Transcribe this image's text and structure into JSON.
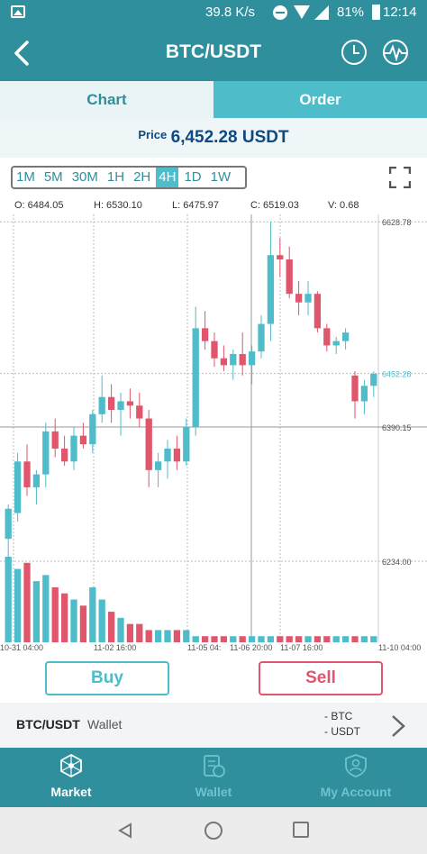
{
  "status_bar": {
    "net_speed": "39.8 K/s",
    "battery": "81%",
    "time": "12:14"
  },
  "header": {
    "title": "BTC/USDT",
    "icons": [
      "back-arrow-icon",
      "clock-icon",
      "pulse-icon"
    ]
  },
  "tabs": [
    {
      "label": "Chart",
      "active": true
    },
    {
      "label": "Order",
      "active": false
    }
  ],
  "price": {
    "label": "Price",
    "value": "6,452.28 USDT"
  },
  "intervals": [
    "1M",
    "5M",
    "30M",
    "1H",
    "2H",
    "4H",
    "1D",
    "1W"
  ],
  "active_interval": "4H",
  "ohlcv": {
    "open": "O: 6484.05",
    "high": "H: 6530.10",
    "low": "L: 6475.97",
    "close": "C: 6519.03",
    "volume": "V: 0.68"
  },
  "chart_data": {
    "type": "candlestick",
    "price_labels": {
      "top": "6628.78",
      "current": "6452.28",
      "cross": "6390.15",
      "bottom": "6234.00"
    },
    "x_tick_labels": [
      "10-31 04:00",
      "11-02 16:00",
      "11-05 04:",
      "11-06 20:00",
      "11-07 16:00",
      "11-10 04:00"
    ],
    "ylim": [
      6234,
      6629
    ],
    "candles": [
      {
        "o": 6260,
        "h": 6300,
        "l": 6230,
        "c": 6295,
        "v": 14
      },
      {
        "o": 6290,
        "h": 6360,
        "l": 6280,
        "c": 6350,
        "v": 12
      },
      {
        "o": 6350,
        "h": 6370,
        "l": 6310,
        "c": 6320,
        "v": 13
      },
      {
        "o": 6320,
        "h": 6340,
        "l": 6300,
        "c": 6335,
        "v": 10
      },
      {
        "o": 6335,
        "h": 6395,
        "l": 6320,
        "c": 6385,
        "v": 11
      },
      {
        "o": 6385,
        "h": 6400,
        "l": 6355,
        "c": 6365,
        "v": 9
      },
      {
        "o": 6365,
        "h": 6380,
        "l": 6345,
        "c": 6350,
        "v": 8
      },
      {
        "o": 6350,
        "h": 6390,
        "l": 6340,
        "c": 6380,
        "v": 7
      },
      {
        "o": 6380,
        "h": 6395,
        "l": 6365,
        "c": 6370,
        "v": 6
      },
      {
        "o": 6370,
        "h": 6410,
        "l": 6360,
        "c": 6405,
        "v": 9
      },
      {
        "o": 6405,
        "h": 6450,
        "l": 6395,
        "c": 6425,
        "v": 7
      },
      {
        "o": 6425,
        "h": 6440,
        "l": 6395,
        "c": 6410,
        "v": 5
      },
      {
        "o": 6410,
        "h": 6430,
        "l": 6380,
        "c": 6420,
        "v": 4
      },
      {
        "o": 6420,
        "h": 6435,
        "l": 6400,
        "c": 6415,
        "v": 3
      },
      {
        "o": 6415,
        "h": 6430,
        "l": 6390,
        "c": 6400,
        "v": 3
      },
      {
        "o": 6400,
        "h": 6410,
        "l": 6320,
        "c": 6340,
        "v": 2
      },
      {
        "o": 6340,
        "h": 6360,
        "l": 6320,
        "c": 6350,
        "v": 2
      },
      {
        "o": 6350,
        "h": 6375,
        "l": 6330,
        "c": 6365,
        "v": 2
      },
      {
        "o": 6365,
        "h": 6380,
        "l": 6340,
        "c": 6350,
        "v": 2
      },
      {
        "o": 6350,
        "h": 6400,
        "l": 6345,
        "c": 6390,
        "v": 2
      },
      {
        "o": 6390,
        "h": 6530,
        "l": 6380,
        "c": 6505,
        "v": 1
      },
      {
        "o": 6505,
        "h": 6525,
        "l": 6480,
        "c": 6490,
        "v": 1
      },
      {
        "o": 6490,
        "h": 6500,
        "l": 6460,
        "c": 6470,
        "v": 1
      },
      {
        "o": 6470,
        "h": 6485,
        "l": 6455,
        "c": 6462,
        "v": 1
      },
      {
        "o": 6462,
        "h": 6480,
        "l": 6445,
        "c": 6475,
        "v": 1
      },
      {
        "o": 6475,
        "h": 6500,
        "l": 6450,
        "c": 6462,
        "v": 1
      },
      {
        "o": 6462,
        "h": 6485,
        "l": 6440,
        "c": 6478,
        "v": 1
      },
      {
        "o": 6478,
        "h": 6520,
        "l": 6470,
        "c": 6510,
        "v": 1
      },
      {
        "o": 6510,
        "h": 6629,
        "l": 6490,
        "c": 6590,
        "v": 1
      },
      {
        "o": 6590,
        "h": 6610,
        "l": 6565,
        "c": 6585,
        "v": 1
      },
      {
        "o": 6585,
        "h": 6600,
        "l": 6540,
        "c": 6545,
        "v": 1
      },
      {
        "o": 6545,
        "h": 6560,
        "l": 6520,
        "c": 6535,
        "v": 1
      },
      {
        "o": 6535,
        "h": 6560,
        "l": 6520,
        "c": 6545,
        "v": 1
      },
      {
        "o": 6545,
        "h": 6548,
        "l": 6500,
        "c": 6505,
        "v": 1
      },
      {
        "o": 6505,
        "h": 6510,
        "l": 6478,
        "c": 6485,
        "v": 1
      },
      {
        "o": 6485,
        "h": 6495,
        "l": 6475,
        "c": 6490,
        "v": 1
      },
      {
        "o": 6490,
        "h": 6505,
        "l": 6480,
        "c": 6500,
        "v": 1
      },
      {
        "o": 6450,
        "h": 6455,
        "l": 6400,
        "c": 6420,
        "v": 1
      },
      {
        "o": 6420,
        "h": 6445,
        "l": 6405,
        "c": 6438,
        "v": 1
      },
      {
        "o": 6438,
        "h": 6455,
        "l": 6425,
        "c": 6452,
        "v": 1
      }
    ],
    "vline_positions": [
      "10-31 04:00",
      "11-02 16:00",
      "11-05 04:",
      "11-06 20:00",
      "11-07 16:00"
    ]
  },
  "actions": {
    "buy": "Buy",
    "sell": "Sell"
  },
  "wallet": {
    "pair": "BTC/USDT",
    "label": "Wallet",
    "coins": [
      "-  BTC",
      "-  USDT"
    ]
  },
  "bottom_nav": [
    {
      "label": "Market",
      "icon": "network-icon",
      "active": true
    },
    {
      "label": "Wallet",
      "icon": "wallet-icon",
      "active": false
    },
    {
      "label": "My Account",
      "icon": "account-icon",
      "active": false
    }
  ],
  "colors": {
    "primary": "#2f8f9d",
    "up": "#4fbcc9",
    "down": "#e0566c"
  }
}
